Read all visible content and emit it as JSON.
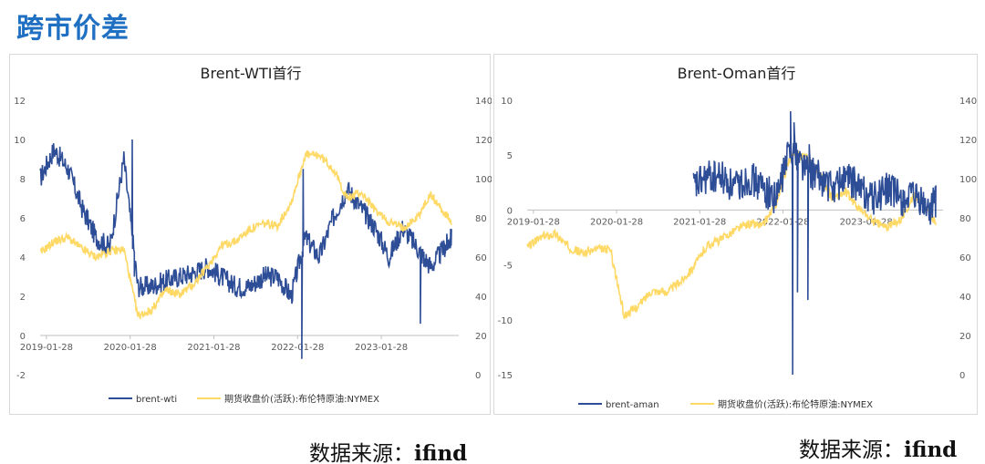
{
  "page": {
    "title": "跨市价差"
  },
  "colors": {
    "title": "#1f6fc2",
    "spread": "#2e4d97",
    "brent": "#ffd966"
  },
  "charts": [
    {
      "id": "left",
      "title": "Brent-WTI首行",
      "legend": [
        "brent-wti",
        "期货收盘价(活跃):布伦特原油:NYMEX"
      ],
      "y_left": {
        "min": -2,
        "max": 12,
        "ticks": [
          "-2",
          "0",
          "2",
          "4",
          "6",
          "8",
          "10",
          "12"
        ]
      },
      "y_right": {
        "min": 0,
        "max": 140,
        "ticks": [
          "0",
          "20",
          "40",
          "60",
          "80",
          "100",
          "120",
          "140"
        ]
      },
      "x": {
        "start": "2019-01-01",
        "end": "2023-12-31",
        "ticks": [
          "2019-01-28",
          "2020-01-28",
          "2021-01-28",
          "2022-01-28",
          "2023-01-28"
        ]
      }
    },
    {
      "id": "right",
      "title": "Brent-Oman首行",
      "legend": [
        "brent-aman",
        "期货收盘价(活跃):布伦特原油:NYMEX"
      ],
      "y_left": {
        "min": -15,
        "max": 10,
        "ticks": [
          "-15",
          "-10",
          "-5",
          "0",
          "5",
          "10"
        ]
      },
      "y_right": {
        "min": 0,
        "max": 140,
        "ticks": [
          "0",
          "20",
          "40",
          "60",
          "80",
          "100",
          "120",
          "140"
        ]
      },
      "x": {
        "start": "2019-01-01",
        "end": "2023-12-31",
        "ticks": [
          "2019-01-28",
          "2020-01-28",
          "2021-01-28",
          "2022-01-28",
          "2023-01-28"
        ]
      }
    }
  ],
  "source": {
    "label": "数据来源：",
    "name": "ifind"
  },
  "chart_data": [
    {
      "type": "line",
      "title": "Brent-WTI首行",
      "x": [
        "2019-01",
        "2019-03",
        "2019-05",
        "2019-07",
        "2019-09",
        "2019-11",
        "2020-01",
        "2020-03",
        "2020-05",
        "2020-07",
        "2020-09",
        "2020-11",
        "2021-01",
        "2021-03",
        "2021-05",
        "2021-07",
        "2021-09",
        "2021-11",
        "2022-01",
        "2022-03",
        "2022-05",
        "2022-07",
        "2022-09",
        "2022-11",
        "2023-01",
        "2023-03",
        "2023-05",
        "2023-07",
        "2023-09",
        "2023-11",
        "2023-12"
      ],
      "series": [
        {
          "name": "brent-wti",
          "axis": "left",
          "values": [
            8.0,
            9.5,
            8.5,
            6.5,
            5.0,
            4.5,
            9.0,
            2.5,
            2.5,
            2.8,
            3.0,
            3.2,
            3.5,
            3.0,
            2.5,
            2.5,
            3.0,
            3.0,
            2.0,
            5.0,
            4.0,
            6.0,
            7.5,
            6.5,
            5.5,
            4.0,
            5.5,
            4.5,
            3.5,
            4.5,
            5.0
          ]
        },
        {
          "name": "期货收盘价(活跃):布伦特原油:NYMEX",
          "axis": "right",
          "values": [
            62,
            68,
            70,
            64,
            60,
            63,
            64,
            30,
            33,
            43,
            41,
            46,
            55,
            66,
            68,
            74,
            77,
            76,
            88,
            112,
            112,
            105,
            90,
            93,
            84,
            78,
            75,
            80,
            92,
            82,
            78
          ]
        }
      ],
      "ylim": [
        -2,
        12
      ],
      "ylim_right": [
        0,
        140
      ]
    },
    {
      "type": "line",
      "title": "Brent-Oman首行",
      "x": [
        "2019-01",
        "2019-03",
        "2019-05",
        "2019-07",
        "2019-09",
        "2019-11",
        "2020-01",
        "2020-03",
        "2020-05",
        "2020-07",
        "2020-09",
        "2020-11",
        "2021-01",
        "2021-03",
        "2021-05",
        "2021-07",
        "2021-09",
        "2021-11",
        "2022-01",
        "2022-03",
        "2022-05",
        "2022-07",
        "2022-09",
        "2022-11",
        "2023-01",
        "2023-03",
        "2023-05",
        "2023-07",
        "2023-09",
        "2023-11",
        "2023-12"
      ],
      "series": [
        {
          "name": "brent-aman",
          "axis": "left",
          "values": [
            null,
            null,
            null,
            null,
            null,
            null,
            null,
            null,
            null,
            null,
            null,
            null,
            2,
            3,
            3,
            2,
            3,
            2,
            1,
            6,
            4,
            3,
            2,
            3,
            2,
            1,
            2,
            1,
            1,
            0,
            1
          ]
        },
        {
          "name": "期货收盘价(活跃):布伦特原油:NYMEX",
          "axis": "right",
          "values": [
            65,
            70,
            72,
            65,
            62,
            64,
            64,
            30,
            35,
            43,
            42,
            47,
            55,
            66,
            69,
            74,
            77,
            76,
            88,
            112,
            112,
            104,
            90,
            93,
            84,
            78,
            75,
            80,
            92,
            82,
            78
          ]
        }
      ],
      "ylim": [
        -15,
        10
      ],
      "ylim_right": [
        0,
        140
      ]
    }
  ]
}
